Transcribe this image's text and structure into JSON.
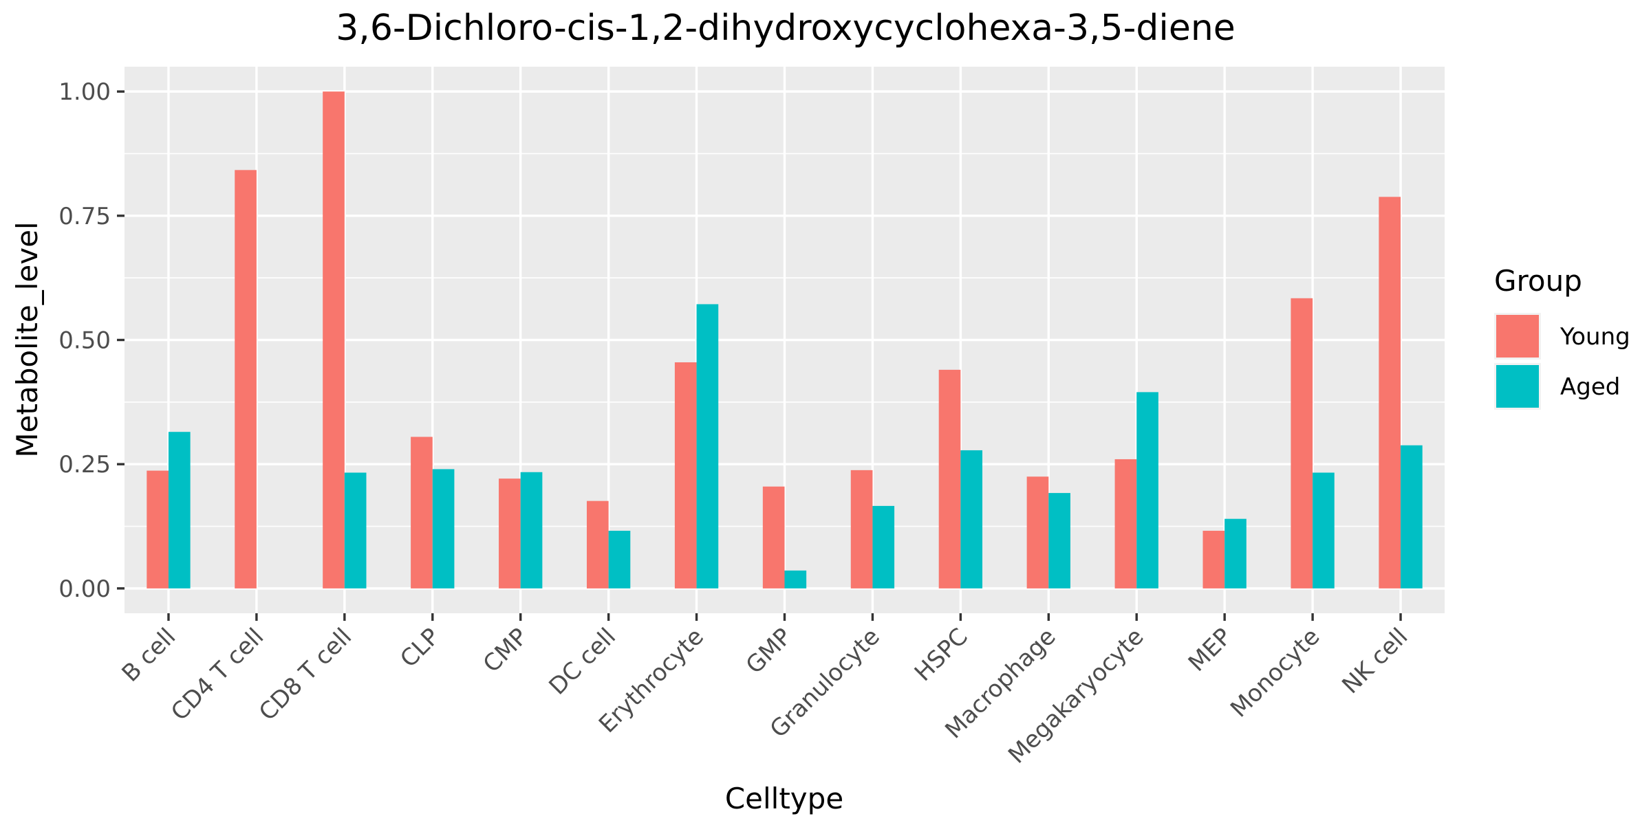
{
  "chart_data": {
    "type": "bar",
    "title": "3,6-Dichloro-cis-1,2-dihydroxycyclohexa-3,5-diene",
    "xlabel": "Celltype",
    "ylabel": "Metabolite_level",
    "ylim": [
      -0.05,
      1.05
    ],
    "yticks": [
      0.0,
      0.25,
      0.5,
      0.75,
      1.0
    ],
    "ytick_labels": [
      "0.00",
      "0.25",
      "0.50",
      "0.75",
      "1.00"
    ],
    "grid": true,
    "legend_position": "right",
    "legend_title": "Group",
    "categories": [
      "B cell",
      "CD4 T cell",
      "CD8 T cell",
      "CLP",
      "CMP",
      "DC cell",
      "Erythrocyte",
      "GMP",
      "Granulocyte",
      "HSPC",
      "Macrophage",
      "Megakaryocyte",
      "MEP",
      "Monocyte",
      "NK cell"
    ],
    "series": [
      {
        "name": "Young",
        "color": "#F8766D",
        "values": [
          0.237,
          0.842,
          1.0,
          0.305,
          0.221,
          0.176,
          0.455,
          0.205,
          0.238,
          0.44,
          0.225,
          0.26,
          0.116,
          0.584,
          0.788
        ]
      },
      {
        "name": "Aged",
        "color": "#00BFC4",
        "values": [
          0.315,
          null,
          0.233,
          0.24,
          0.234,
          0.116,
          0.572,
          0.036,
          0.166,
          0.278,
          0.192,
          0.395,
          0.14,
          0.233,
          0.288
        ]
      }
    ]
  }
}
